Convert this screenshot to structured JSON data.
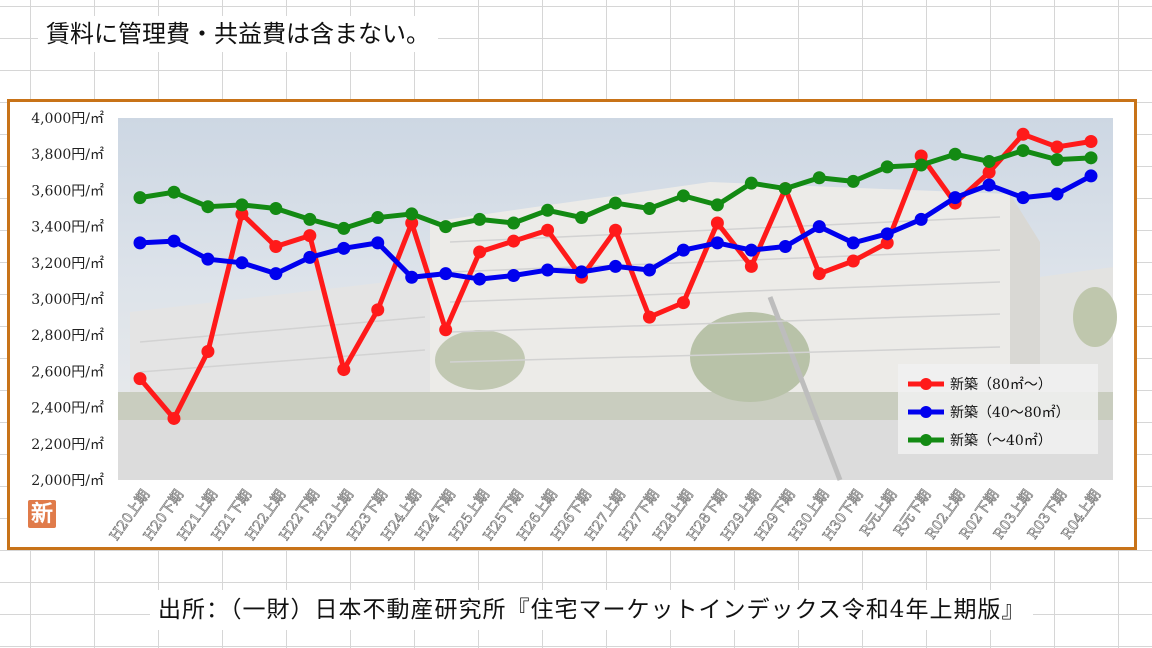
{
  "header": {
    "note": "賃料に管理費・共益費は含まない。"
  },
  "footer": {
    "source": "出所：（一財）日本不動産研究所『住宅マーケットインデックス令和4年上期版』"
  },
  "stamp": {
    "label": "新"
  },
  "colors": {
    "frame": "#c87318",
    "series": [
      "#ff1a1a",
      "#0000ee",
      "#138a13"
    ]
  },
  "chart_data": {
    "type": "line",
    "categories": [
      "H20上期",
      "H20下期",
      "H21上期",
      "H21下期",
      "H22上期",
      "H22下期",
      "H23上期",
      "H23下期",
      "H24上期",
      "H24下期",
      "H25上期",
      "H25下期",
      "H26上期",
      "H26下期",
      "H27上期",
      "H27下期",
      "H28上期",
      "H28下期",
      "H29上期",
      "H29下期",
      "H30上期",
      "H30下期",
      "R元上期",
      "R元下期",
      "R02上期",
      "R02下期",
      "R03上期",
      "R03下期",
      "R04上期"
    ],
    "ylim": [
      2000,
      4000
    ],
    "yticks": [
      "2,000円/㎡",
      "2,200円/㎡",
      "2,400円/㎡",
      "2,600円/㎡",
      "2,800円/㎡",
      "3,000円/㎡",
      "3,200円/㎡",
      "3,400円/㎡",
      "3,600円/㎡",
      "3,800円/㎡",
      "4,000円/㎡"
    ],
    "legend_position": "right",
    "series": [
      {
        "name": "新築（80㎡～）",
        "values": [
          2560,
          2340,
          2710,
          3470,
          3290,
          3350,
          2610,
          2940,
          3420,
          2830,
          3260,
          3320,
          3380,
          3120,
          3380,
          2900,
          2980,
          3420,
          3180,
          3610,
          3140,
          3210,
          3310,
          3790,
          3530,
          3700,
          3910,
          3840,
          3870
        ]
      },
      {
        "name": "新築（40～80㎡）",
        "values": [
          3310,
          3320,
          3220,
          3200,
          3140,
          3230,
          3280,
          3310,
          3120,
          3140,
          3110,
          3130,
          3160,
          3150,
          3180,
          3160,
          3270,
          3310,
          3270,
          3290,
          3400,
          3310,
          3360,
          3440,
          3560,
          3630,
          3560,
          3580,
          3680
        ]
      },
      {
        "name": "新築（～40㎡）",
        "values": [
          3560,
          3590,
          3510,
          3520,
          3500,
          3440,
          3390,
          3450,
          3470,
          3400,
          3440,
          3420,
          3490,
          3450,
          3530,
          3500,
          3570,
          3520,
          3640,
          3610,
          3670,
          3650,
          3730,
          3740,
          3800,
          3760,
          3820,
          3770,
          3780
        ]
      }
    ]
  }
}
